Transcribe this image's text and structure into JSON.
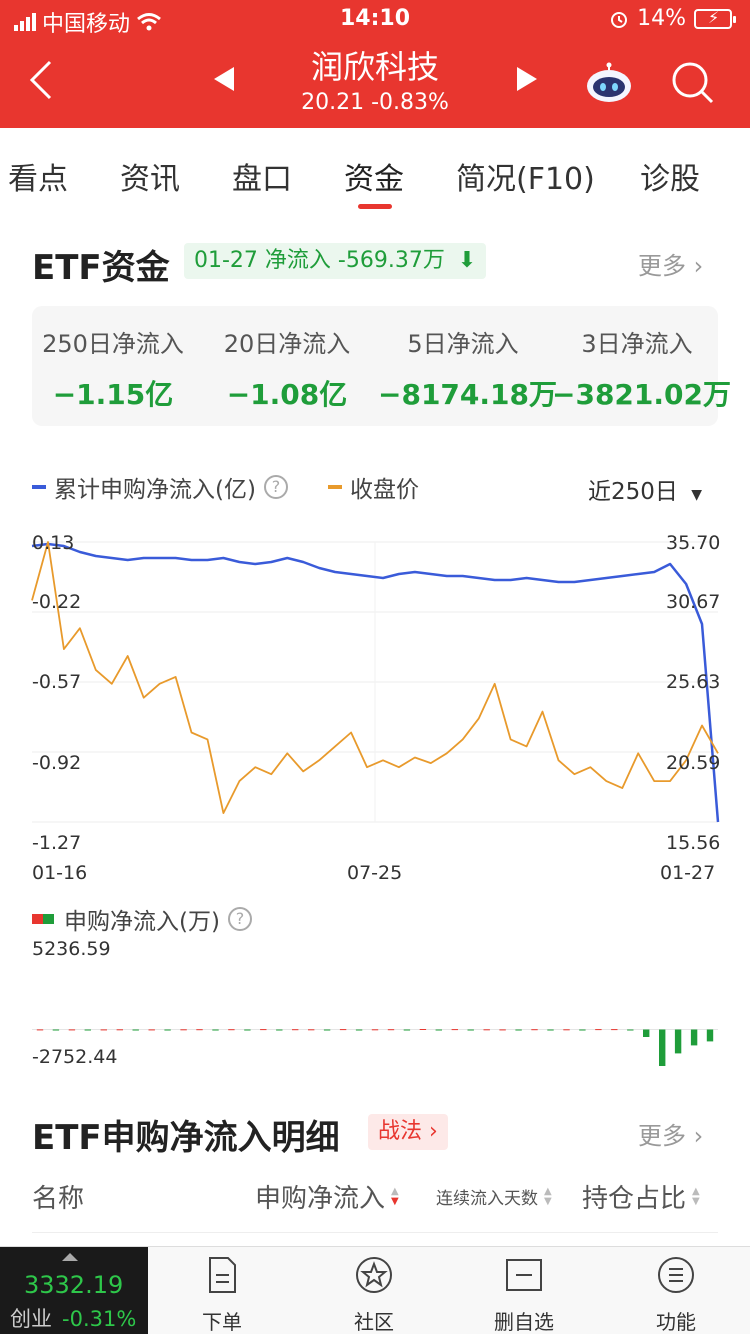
{
  "status": {
    "carrier": "中国移动",
    "time": "14:10",
    "battery": "14%"
  },
  "header": {
    "title": "润欣科技",
    "price": "20.21",
    "change": "-0.83%"
  },
  "tabs": [
    "看点",
    "资讯",
    "盘口",
    "资金",
    "简况(F10)",
    "诊股"
  ],
  "active_tab": "资金",
  "etf": {
    "title": "ETF资金",
    "badge": "01-27 净流入 -569.37万",
    "more": "更多",
    "summary": [
      {
        "label": "250日净流入",
        "value": "−1.15亿"
      },
      {
        "label": "20日净流入",
        "value": "−1.08亿"
      },
      {
        "label": "5日净流入",
        "value": "−8174.18万"
      },
      {
        "label": "3日净流入",
        "value": "−3821.02万"
      }
    ],
    "legend_flow": "累计申购净流入(亿)",
    "legend_price": "收盘价",
    "range": "近250日",
    "colors": {
      "flow": "#3a5bd9",
      "price": "#e89a2c",
      "up": "#e8362f",
      "down": "#1f9d3a"
    }
  },
  "chart_data": [
    {
      "type": "line",
      "x_ticks": [
        "01-16",
        "07-25",
        "01-27"
      ],
      "y_left_ticks": [
        "0.13",
        "-0.22",
        "-0.57",
        "-0.92",
        "-1.27"
      ],
      "y_right_ticks": [
        "35.70",
        "30.67",
        "25.63",
        "20.59",
        "15.56"
      ],
      "ylim_left": [
        -1.27,
        0.13
      ],
      "ylim_right": [
        15.56,
        35.7
      ],
      "series": [
        {
          "name": "累计申购净流入(亿)",
          "axis": "left",
          "values": [
            0.11,
            0.12,
            0.11,
            0.08,
            0.06,
            0.05,
            0.04,
            0.05,
            0.05,
            0.05,
            0.04,
            0.04,
            0.05,
            0.03,
            0.02,
            0.03,
            0.05,
            0.03,
            0.0,
            -0.02,
            -0.03,
            -0.04,
            -0.05,
            -0.03,
            -0.02,
            -0.03,
            -0.04,
            -0.04,
            -0.05,
            -0.06,
            -0.06,
            -0.05,
            -0.06,
            -0.07,
            -0.07,
            -0.06,
            -0.05,
            -0.04,
            -0.03,
            -0.02,
            0.02,
            -0.08,
            -0.28,
            -1.27
          ]
        },
        {
          "name": "收盘价",
          "axis": "right",
          "values": [
            31.5,
            35.7,
            28.0,
            29.5,
            26.5,
            25.5,
            27.5,
            24.5,
            25.5,
            26.0,
            22.0,
            21.5,
            16.2,
            18.5,
            19.5,
            19.0,
            20.5,
            19.2,
            20.0,
            21.0,
            22.0,
            19.5,
            20.0,
            19.5,
            20.2,
            19.8,
            20.5,
            21.5,
            23.0,
            25.5,
            21.5,
            21.0,
            23.5,
            20.0,
            19.0,
            19.5,
            18.5,
            18.0,
            20.5,
            18.5,
            18.5,
            20.0,
            22.5,
            20.5
          ]
        }
      ]
    },
    {
      "type": "bar",
      "title": "申购净流入(万)",
      "ylim": [
        -2752.44,
        5236.59
      ],
      "values": [
        5,
        -3,
        8,
        -10,
        4,
        12,
        -6,
        3,
        -4,
        15,
        20,
        -25,
        18,
        -8,
        30,
        -40,
        22,
        10,
        -15,
        28,
        -30,
        12,
        18,
        -12,
        35,
        -20,
        25,
        -10,
        15,
        8,
        -18,
        20,
        -6,
        14,
        -22,
        30,
        26,
        -45,
        -569,
        -2752,
        -1800,
        -1200,
        -900
      ]
    }
  ],
  "detail": {
    "title": "ETF申购净流入明细",
    "tag": "战法",
    "more": "更多",
    "columns": [
      "名称",
      "申购净流入",
      "连续流入天数",
      "持仓占比"
    ]
  },
  "bottom": {
    "index_value": "3332.19",
    "index_name": "创业",
    "index_change": "-0.31%",
    "items": [
      "下单",
      "社区",
      "删自选",
      "功能"
    ]
  }
}
